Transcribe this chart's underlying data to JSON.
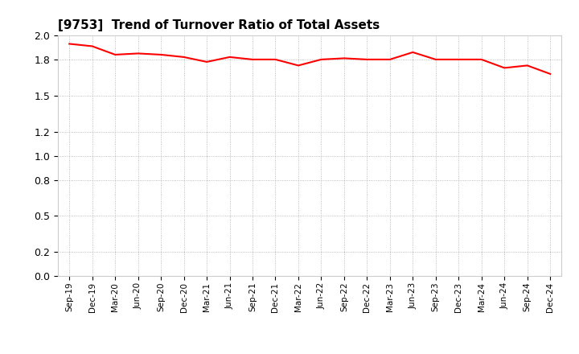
{
  "title": "[9753]  Trend of Turnover Ratio of Total Assets",
  "line_color": "#FF0000",
  "line_width": 1.5,
  "background_color": "#FFFFFF",
  "grid_color": "#AAAAAA",
  "ylim": [
    0.0,
    2.0
  ],
  "yticks": [
    0.0,
    0.2,
    0.5,
    0.8,
    1.0,
    1.2,
    1.5,
    1.8,
    2.0
  ],
  "x_labels": [
    "Sep-19",
    "Dec-19",
    "Mar-20",
    "Jun-20",
    "Sep-20",
    "Dec-20",
    "Mar-21",
    "Jun-21",
    "Sep-21",
    "Dec-21",
    "Mar-22",
    "Jun-22",
    "Sep-22",
    "Dec-22",
    "Mar-23",
    "Jun-23",
    "Sep-23",
    "Dec-23",
    "Mar-24",
    "Jun-24",
    "Sep-24",
    "Dec-24"
  ],
  "values": [
    1.93,
    1.91,
    1.84,
    1.85,
    1.84,
    1.82,
    1.78,
    1.82,
    1.8,
    1.8,
    1.75,
    1.8,
    1.81,
    1.8,
    1.8,
    1.86,
    1.8,
    1.8,
    1.8,
    1.73,
    1.75,
    1.68
  ]
}
